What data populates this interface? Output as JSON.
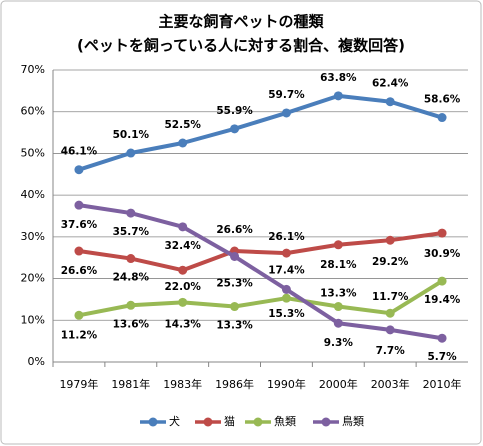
{
  "chart_data": {
    "type": "line",
    "title": "主要な飼育ペットの種類",
    "subtitle": "(ペットを飼っている人に対する割合、複数回答)",
    "categories": [
      "1979年",
      "1981年",
      "1983年",
      "1986年",
      "1990年",
      "2000年",
      "2003年",
      "2010年"
    ],
    "series": [
      {
        "name": "犬",
        "color": "#4a7ebb",
        "values": [
          46.1,
          50.1,
          52.5,
          55.9,
          59.7,
          63.8,
          62.4,
          58.6
        ],
        "value_labels": [
          "46.1%",
          "50.1%",
          "52.5%",
          "55.9%",
          "59.7%",
          "63.8%",
          "62.4%",
          "58.6%"
        ]
      },
      {
        "name": "猫",
        "color": "#be4b48",
        "values": [
          26.6,
          24.8,
          22.0,
          26.6,
          26.1,
          28.1,
          29.2,
          30.9
        ],
        "value_labels": [
          "26.6%",
          "24.8%",
          "22.0%",
          "26.6%",
          "26.1%",
          "28.1%",
          "29.2%",
          "30.9%"
        ]
      },
      {
        "name": "魚類",
        "color": "#98b954",
        "values": [
          11.2,
          13.6,
          14.3,
          13.3,
          15.3,
          13.3,
          11.7,
          19.4
        ],
        "value_labels": [
          "11.2%",
          "13.6%",
          "14.3%",
          "13.3%",
          "15.3%",
          "13.3%",
          "11.7%",
          "19.4%"
        ]
      },
      {
        "name": "鳥類",
        "color": "#7d60a0",
        "values": [
          37.6,
          35.7,
          32.4,
          25.3,
          17.4,
          9.3,
          7.7,
          5.7
        ],
        "value_labels": [
          "37.6%",
          "35.7%",
          "32.4%",
          "25.3%",
          "17.4%",
          "9.3%",
          "7.7%",
          "5.7%"
        ]
      }
    ],
    "ylim": [
      0,
      70
    ],
    "yticks": [
      {
        "value": 0,
        "label": "0%"
      },
      {
        "value": 10,
        "label": "10%"
      },
      {
        "value": 20,
        "label": "20%"
      },
      {
        "value": 30,
        "label": "30%"
      },
      {
        "value": 40,
        "label": "40%"
      },
      {
        "value": 50,
        "label": "50%"
      },
      {
        "value": 60,
        "label": "60%"
      },
      {
        "value": 70,
        "label": "70%"
      }
    ],
    "grid": true,
    "legend": "bottom"
  }
}
